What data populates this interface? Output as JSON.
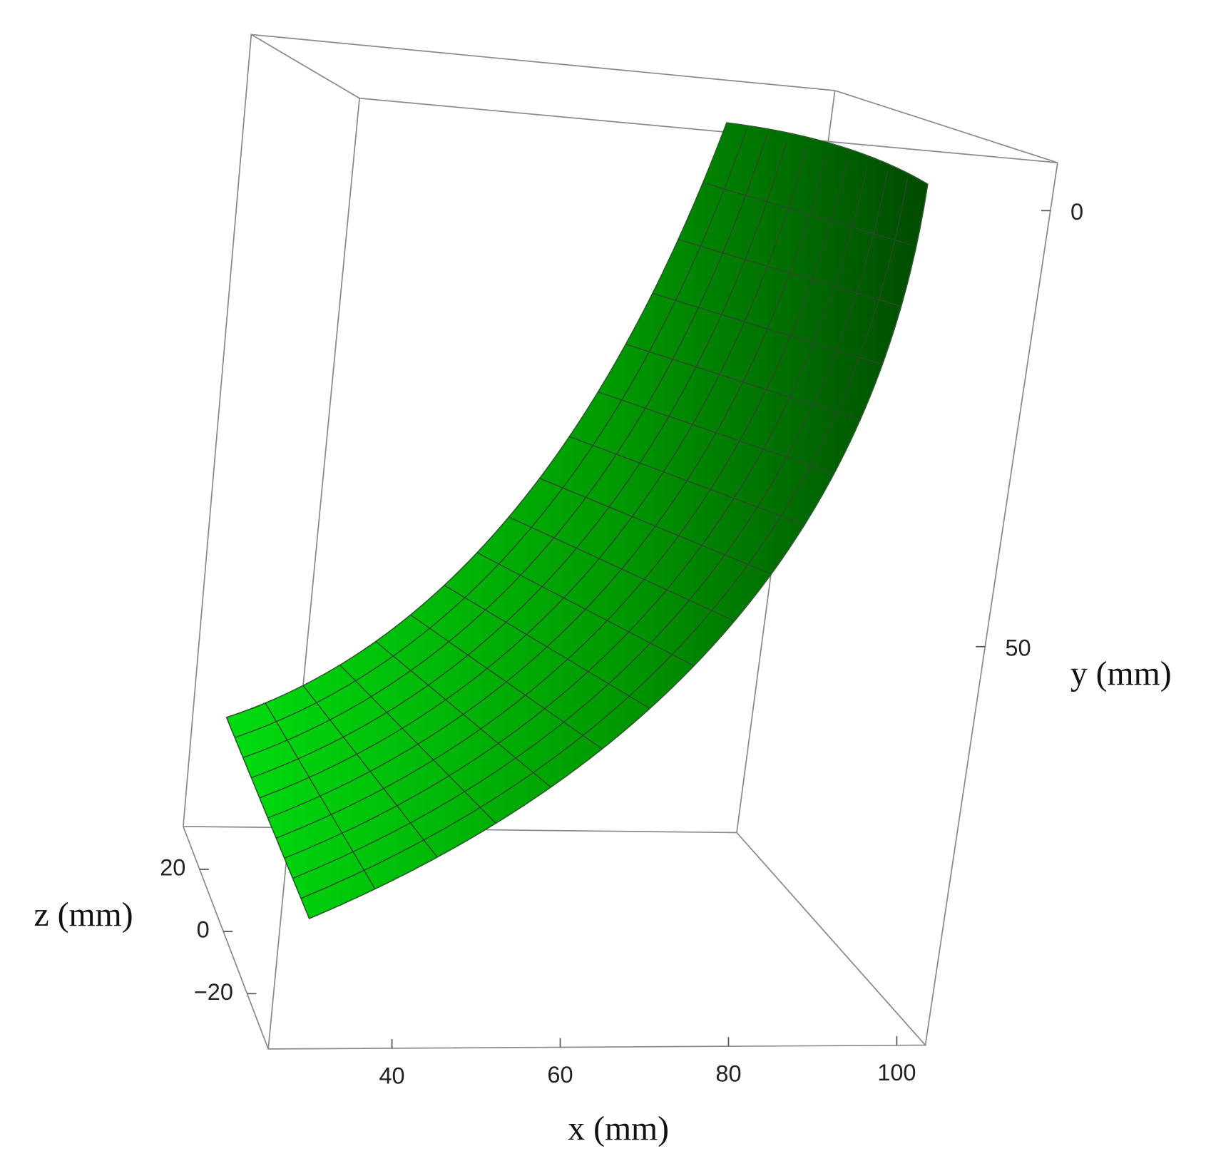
{
  "chart_data": {
    "type": "surface3d",
    "xlabel": "x (mm)",
    "ylabel": "y (mm)",
    "zlabel": "z (mm)",
    "xlim": [
      25.3,
      103.4
    ],
    "xticks": [
      40,
      60,
      80,
      100
    ],
    "ylim": [
      -5.5,
      95.7
    ],
    "yticks": [
      0,
      50
    ],
    "zlim": [
      -37.8,
      33.8
    ],
    "zticks": [
      20,
      0,
      {
        "value": -20,
        "label": "−20"
      }
    ],
    "color": "#00b000"
  }
}
